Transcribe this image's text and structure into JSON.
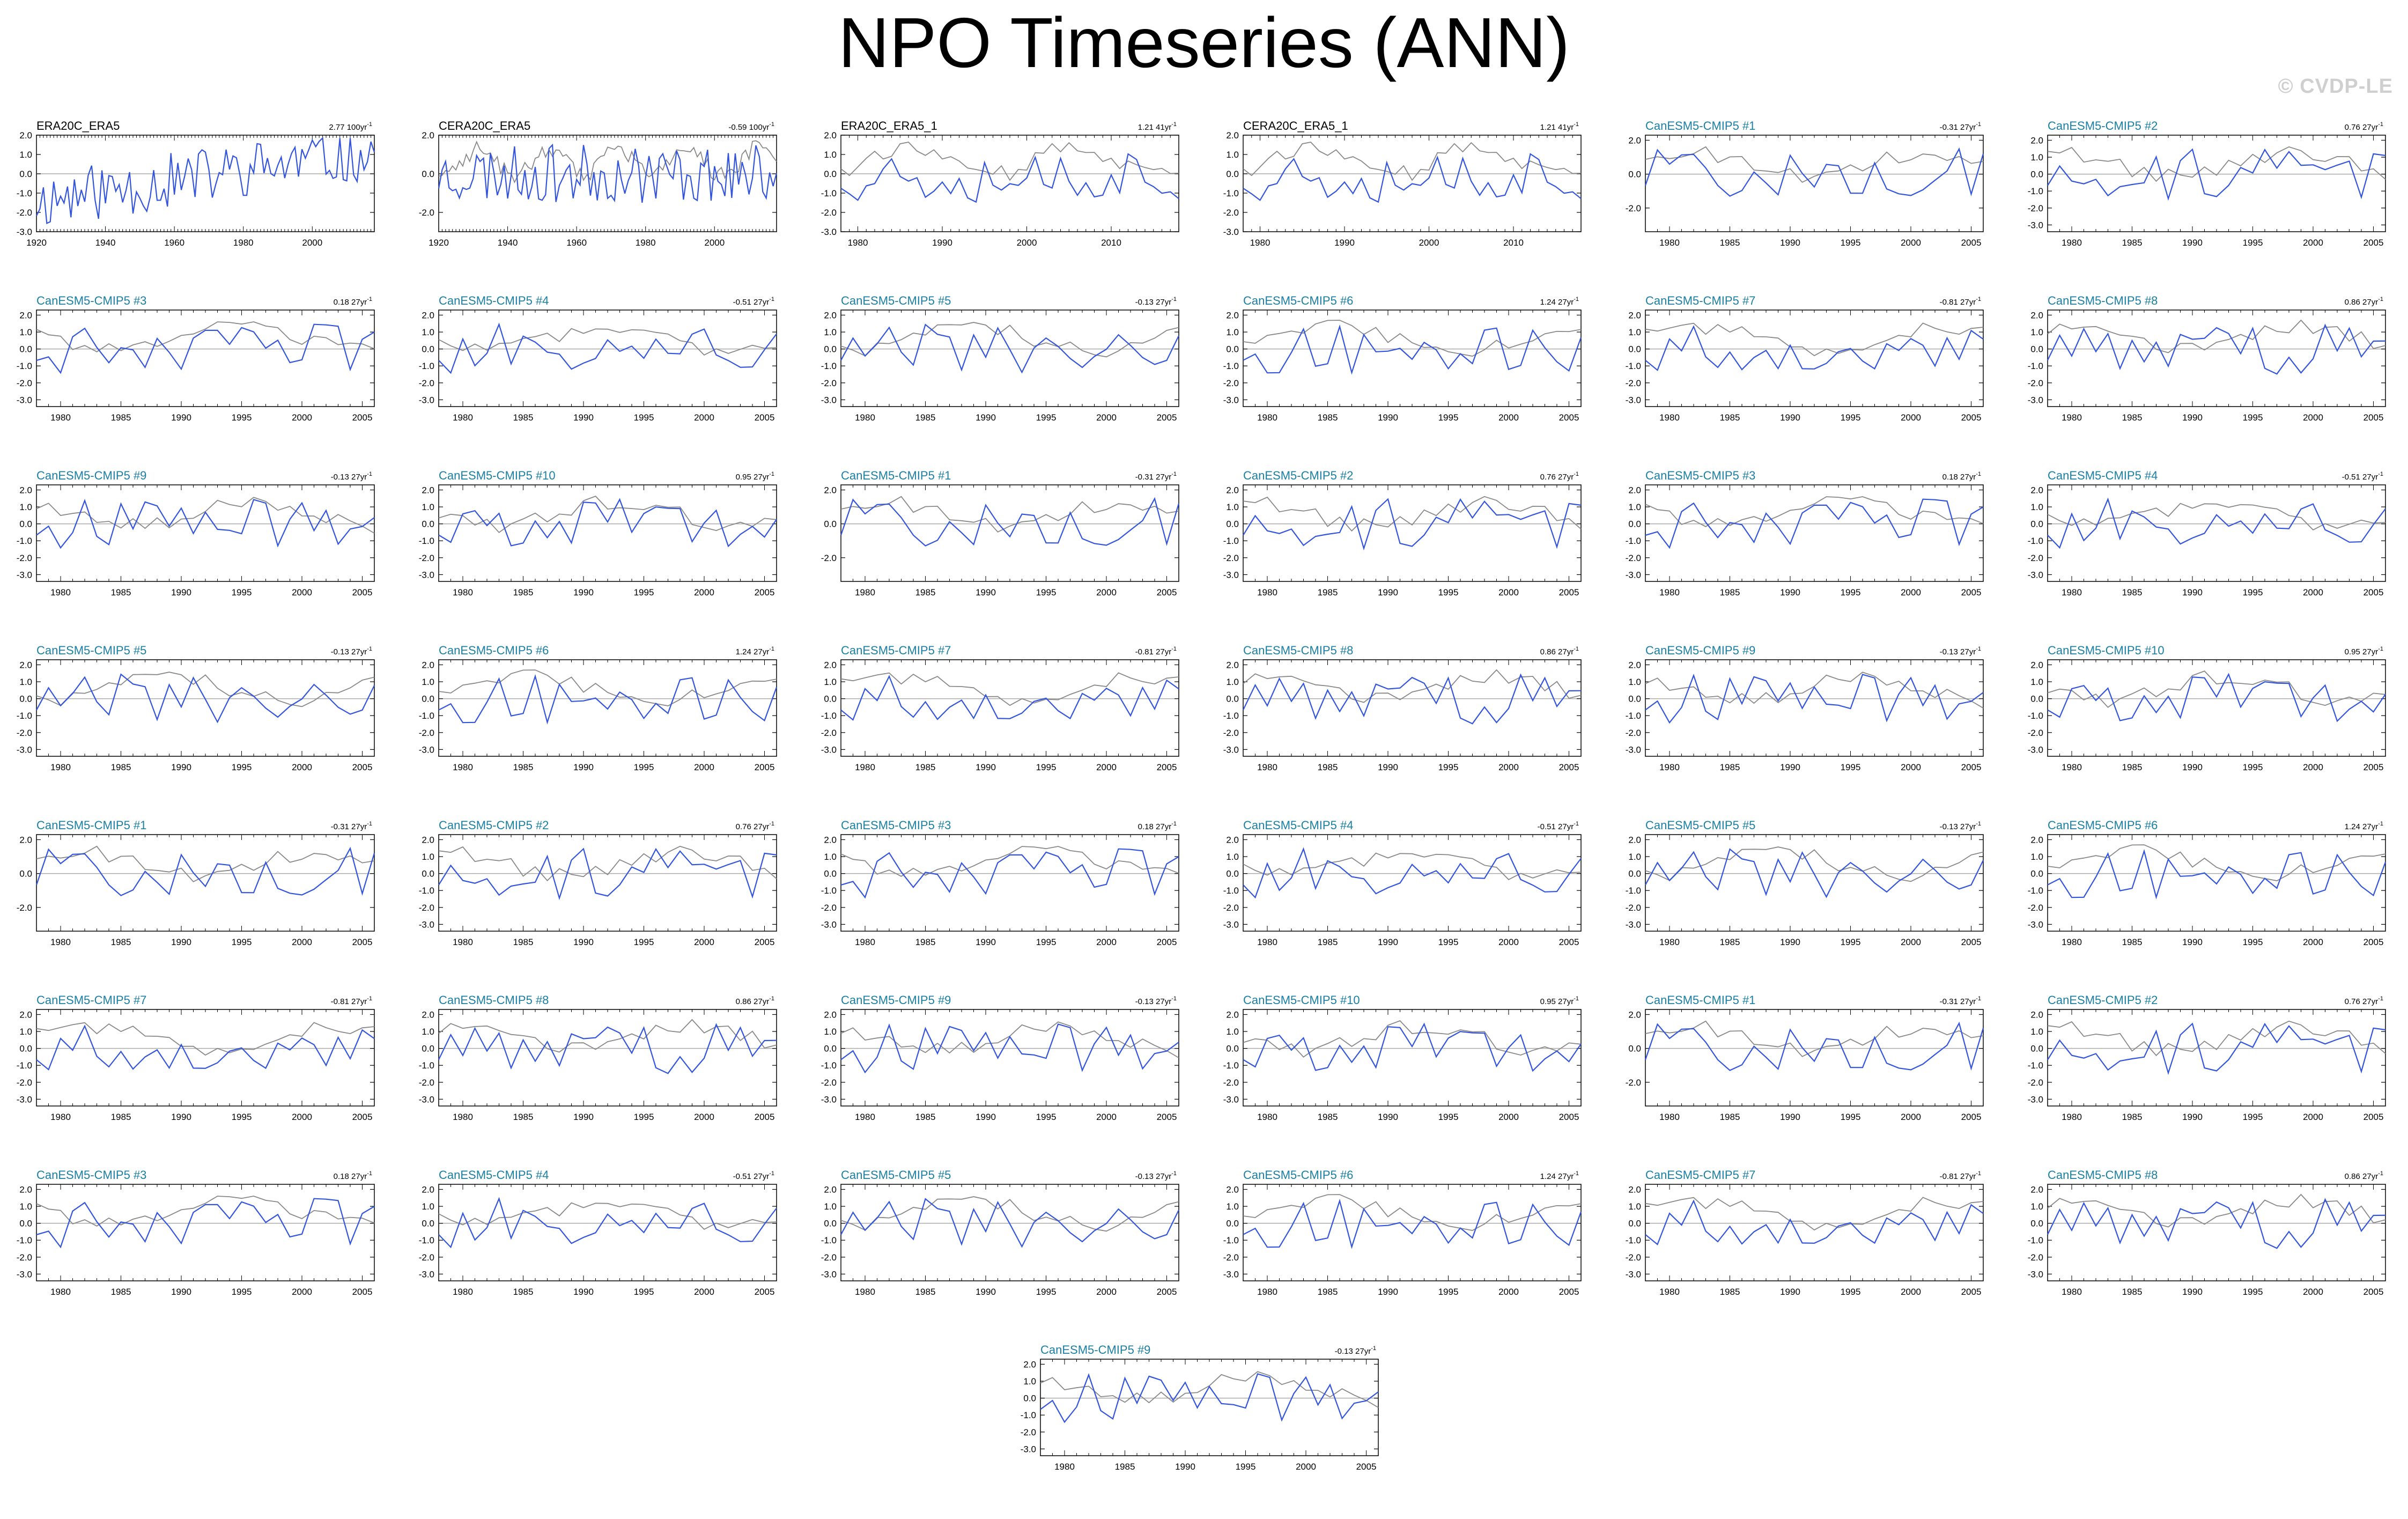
{
  "title": "NPO Timeseries (ANN)",
  "watermark": "© CVDP-LE",
  "colors": {
    "obs_title": "#000000",
    "model_title": "#1a7fa3",
    "member_line": "#3355dd",
    "ensemble_line": "#888888",
    "zero_line": "#aaaaaa"
  },
  "chart_data": {
    "type": "line",
    "grid": false,
    "panels_per_row": 6,
    "panels": [
      {
        "title": "ERA20C_ERA5",
        "trend": "2.77 100yr",
        "kind": "obs",
        "xlim": [
          1920,
          2018
        ],
        "xticks": [
          1920,
          1940,
          1960,
          1980,
          2000
        ],
        "ylim": [
          -3.0,
          2.0
        ],
        "yticks": [
          2.0,
          1.0,
          0.0,
          -1.0,
          -2.0,
          -3.0
        ],
        "seed": 11
      },
      {
        "title": "CERA20C_ERA5",
        "trend": "-0.59 100yr",
        "kind": "obs",
        "xlim": [
          1920,
          2018
        ],
        "xticks": [
          1920,
          1940,
          1960,
          1980,
          2000
        ],
        "ylim": [
          -3.0,
          2.0
        ],
        "yticks": [
          2.0,
          0.0,
          -2.0
        ],
        "seed": 23
      },
      {
        "title": "ERA20C_ERA5_1",
        "trend": "1.21 41yr",
        "kind": "obs",
        "xlim": [
          1978,
          2018
        ],
        "xticks": [
          1980,
          1990,
          2000,
          2010
        ],
        "ylim": [
          -3.0,
          2.0
        ],
        "yticks": [
          2.0,
          1.0,
          0.0,
          -1.0,
          -2.0,
          -3.0
        ],
        "seed": 37
      },
      {
        "title": "CERA20C_ERA5_1",
        "trend": "1.21 41yr",
        "kind": "obs",
        "xlim": [
          1978,
          2018
        ],
        "xticks": [
          1980,
          1990,
          2000,
          2010
        ],
        "ylim": [
          -3.0,
          2.0
        ],
        "yticks": [
          2.0,
          1.0,
          0.0,
          -1.0,
          -2.0,
          -3.0
        ],
        "seed": 37
      },
      {
        "title": "CanESM5-CMIP5 #1",
        "trend": "-0.31 27yr",
        "kind": "model",
        "seed": 101,
        "yticks": [
          2.0,
          0.0,
          -2.0
        ]
      },
      {
        "title": "CanESM5-CMIP5 #2",
        "trend": "0.76 27yr",
        "kind": "model",
        "seed": 102
      },
      {
        "title": "CanESM5-CMIP5 #3",
        "trend": "0.18 27yr",
        "kind": "model",
        "seed": 103
      },
      {
        "title": "CanESM5-CMIP5 #4",
        "trend": "-0.51 27yr",
        "kind": "model",
        "seed": 104
      },
      {
        "title": "CanESM5-CMIP5 #5",
        "trend": "-0.13 27yr",
        "kind": "model",
        "seed": 105
      },
      {
        "title": "CanESM5-CMIP5 #6",
        "trend": "1.24 27yr",
        "kind": "model",
        "seed": 106
      },
      {
        "title": "CanESM5-CMIP5 #7",
        "trend": "-0.81 27yr",
        "kind": "model",
        "seed": 107
      },
      {
        "title": "CanESM5-CMIP5 #8",
        "trend": "0.86 27yr",
        "kind": "model",
        "seed": 108
      },
      {
        "title": "CanESM5-CMIP5 #9",
        "trend": "-0.13 27yr",
        "kind": "model",
        "seed": 109
      },
      {
        "title": "CanESM5-CMIP5 #10",
        "trend": "0.95 27yr",
        "kind": "model",
        "seed": 110
      },
      {
        "title": "CanESM5-CMIP5 #1",
        "trend": "-0.31 27yr",
        "kind": "model",
        "seed": 101,
        "yticks": [
          2.0,
          0.0,
          -2.0
        ]
      },
      {
        "title": "CanESM5-CMIP5 #2",
        "trend": "0.76 27yr",
        "kind": "model",
        "seed": 102
      },
      {
        "title": "CanESM5-CMIP5 #3",
        "trend": "0.18 27yr",
        "kind": "model",
        "seed": 103
      },
      {
        "title": "CanESM5-CMIP5 #4",
        "trend": "-0.51 27yr",
        "kind": "model",
        "seed": 104
      },
      {
        "title": "CanESM5-CMIP5 #5",
        "trend": "-0.13 27yr",
        "kind": "model",
        "seed": 105
      },
      {
        "title": "CanESM5-CMIP5 #6",
        "trend": "1.24 27yr",
        "kind": "model",
        "seed": 106
      },
      {
        "title": "CanESM5-CMIP5 #7",
        "trend": "-0.81 27yr",
        "kind": "model",
        "seed": 107
      },
      {
        "title": "CanESM5-CMIP5 #8",
        "trend": "0.86 27yr",
        "kind": "model",
        "seed": 108
      },
      {
        "title": "CanESM5-CMIP5 #9",
        "trend": "-0.13 27yr",
        "kind": "model",
        "seed": 109
      },
      {
        "title": "CanESM5-CMIP5 #10",
        "trend": "0.95 27yr",
        "kind": "model",
        "seed": 110
      },
      {
        "title": "CanESM5-CMIP5 #1",
        "trend": "-0.31 27yr",
        "kind": "model",
        "seed": 101,
        "yticks": [
          2.0,
          0.0,
          -2.0
        ]
      },
      {
        "title": "CanESM5-CMIP5 #2",
        "trend": "0.76 27yr",
        "kind": "model",
        "seed": 102
      },
      {
        "title": "CanESM5-CMIP5 #3",
        "trend": "0.18 27yr",
        "kind": "model",
        "seed": 103
      },
      {
        "title": "CanESM5-CMIP5 #4",
        "trend": "-0.51 27yr",
        "kind": "model",
        "seed": 104
      },
      {
        "title": "CanESM5-CMIP5 #5",
        "trend": "-0.13 27yr",
        "kind": "model",
        "seed": 105
      },
      {
        "title": "CanESM5-CMIP5 #6",
        "trend": "1.24 27yr",
        "kind": "model",
        "seed": 106
      },
      {
        "title": "CanESM5-CMIP5 #7",
        "trend": "-0.81 27yr",
        "kind": "model",
        "seed": 107
      },
      {
        "title": "CanESM5-CMIP5 #8",
        "trend": "0.86 27yr",
        "kind": "model",
        "seed": 108
      },
      {
        "title": "CanESM5-CMIP5 #9",
        "trend": "-0.13 27yr",
        "kind": "model",
        "seed": 109
      },
      {
        "title": "CanESM5-CMIP5 #10",
        "trend": "0.95 27yr",
        "kind": "model",
        "seed": 110
      },
      {
        "title": "CanESM5-CMIP5 #1",
        "trend": "-0.31 27yr",
        "kind": "model",
        "seed": 101,
        "yticks": [
          2.0,
          0.0,
          -2.0
        ]
      },
      {
        "title": "CanESM5-CMIP5 #2",
        "trend": "0.76 27yr",
        "kind": "model",
        "seed": 102
      },
      {
        "title": "CanESM5-CMIP5 #3",
        "trend": "0.18 27yr",
        "kind": "model",
        "seed": 103
      },
      {
        "title": "CanESM5-CMIP5 #4",
        "trend": "-0.51 27yr",
        "kind": "model",
        "seed": 104
      },
      {
        "title": "CanESM5-CMIP5 #5",
        "trend": "-0.13 27yr",
        "kind": "model",
        "seed": 105
      },
      {
        "title": "CanESM5-CMIP5 #6",
        "trend": "1.24 27yr",
        "kind": "model",
        "seed": 106
      },
      {
        "title": "CanESM5-CMIP5 #7",
        "trend": "-0.81 27yr",
        "kind": "model",
        "seed": 107
      },
      {
        "title": "CanESM5-CMIP5 #8",
        "trend": "0.86 27yr",
        "kind": "model",
        "seed": 108
      },
      {
        "title": "CanESM5-CMIP5 #9",
        "trend": "-0.13 27yr",
        "kind": "model",
        "seed": 109
      }
    ],
    "model_defaults": {
      "xlim": [
        1978,
        2006
      ],
      "xticks": [
        1980,
        1985,
        1990,
        1995,
        2000,
        2005
      ],
      "ylim": [
        -3.4,
        2.3
      ],
      "yticks": [
        2.0,
        1.0,
        0.0,
        -1.0,
        -2.0,
        -3.0
      ]
    }
  }
}
